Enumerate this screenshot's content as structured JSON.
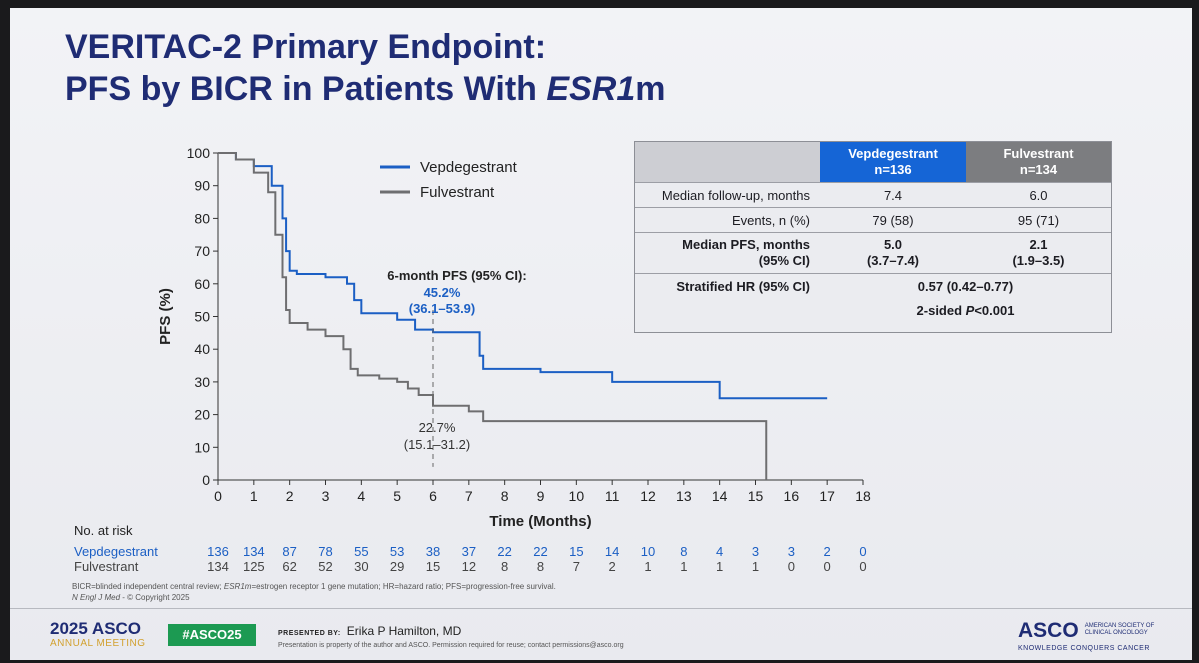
{
  "title": {
    "line1": "VERITAC-2 Primary Endpoint:",
    "line2_prefix": "PFS by BICR in Patients With ",
    "line2_italic": "ESR1",
    "line2_suffix": "m"
  },
  "chart_data": {
    "type": "line",
    "xlabel": "Time (Months)",
    "ylabel": "PFS (%)",
    "xlim": [
      0,
      18
    ],
    "ylim": [
      0,
      100
    ],
    "xticks": [
      0,
      1,
      2,
      3,
      4,
      5,
      6,
      7,
      8,
      9,
      10,
      11,
      12,
      13,
      14,
      15,
      16,
      17,
      18
    ],
    "yticks": [
      0,
      10,
      20,
      30,
      40,
      50,
      60,
      70,
      80,
      90,
      100
    ],
    "colors": {
      "vep": "#1b5fc4",
      "ful": "#6e6e70"
    },
    "legend": [
      "Vepdegestrant",
      "Fulvestrant"
    ],
    "series": [
      {
        "name": "Vepdegestrant",
        "x": [
          0,
          0.5,
          1.0,
          1.5,
          1.8,
          1.9,
          2.0,
          2.2,
          3.0,
          3.6,
          3.8,
          4.0,
          5.0,
          5.5,
          6.0,
          7.0,
          7.3,
          7.4,
          8.5,
          9.0,
          10.0,
          11.0,
          12.0,
          13.8,
          14.0,
          15.0,
          17.0
        ],
        "y": [
          100,
          98,
          96,
          90,
          80,
          70,
          64,
          63,
          62,
          60,
          55,
          51,
          49,
          46,
          45.2,
          45.2,
          38,
          34,
          34,
          33,
          33,
          30,
          30,
          30,
          25,
          25,
          25
        ]
      },
      {
        "name": "Fulvestrant",
        "x": [
          0,
          0.5,
          1.0,
          1.4,
          1.6,
          1.8,
          1.9,
          2.0,
          2.5,
          3.0,
          3.5,
          3.7,
          3.9,
          4.5,
          5.0,
          5.3,
          5.6,
          6.0,
          7.0,
          7.4,
          9.0,
          11.0,
          12.0,
          15.0,
          15.3,
          15.3
        ],
        "y": [
          100,
          98,
          94,
          88,
          75,
          62,
          52,
          48,
          46,
          44,
          40,
          34,
          32,
          31,
          30,
          28,
          26,
          22.7,
          21,
          18,
          18,
          18,
          18,
          18,
          18,
          0
        ]
      }
    ],
    "annotation": {
      "heading": "6-month PFS (95% CI):",
      "vep_value": "45.2%",
      "vep_ci": "(36.1–53.9)",
      "ful_value": "22.7%",
      "ful_ci": "(15.1–31.2)",
      "x": 6
    }
  },
  "table": {
    "col_vep": [
      "Vepdegestrant",
      "n=136"
    ],
    "col_ful": [
      "Fulvestrant",
      "n=134"
    ],
    "rows": [
      {
        "label": "Median follow-up, months",
        "vep": "7.4",
        "ful": "6.0"
      },
      {
        "label": "Events, n (%)",
        "vep": "79 (58)",
        "ful": "95 (71)"
      }
    ],
    "median_pfs": {
      "label1": "Median PFS, months",
      "label2": "(95% CI)",
      "vep1": "5.0",
      "vep2": "(3.7–7.4)",
      "ful1": "2.1",
      "ful2": "(1.9–3.5)"
    },
    "hr": {
      "label": "Stratified HR (95% CI)",
      "value": "0.57 (0.42–0.77)",
      "p_prefix": "2-sided ",
      "p_italic": "P",
      "p_suffix": "<0.001"
    }
  },
  "at_risk": {
    "heading": "No. at risk",
    "vep_label": "Vepdegestrant",
    "ful_label": "Fulvestrant",
    "vep": [
      "136",
      "134",
      "87",
      "78",
      "55",
      "53",
      "38",
      "37",
      "22",
      "22",
      "15",
      "14",
      "10",
      "8",
      "4",
      "3",
      "3",
      "2",
      "0"
    ],
    "ful": [
      "134",
      "125",
      "62",
      "52",
      "30",
      "29",
      "15",
      "12",
      "8",
      "8",
      "7",
      "2",
      "1",
      "1",
      "1",
      "1",
      "0",
      "0",
      "0"
    ]
  },
  "footnote": {
    "line1_a": "BICR=blinded independent central review; ",
    "line1_b": "ESR1m",
    "line1_c": "=estrogen receptor 1 gene mutation; HR=hazard ratio; PFS=progression-free survival.",
    "line2_a": "N Engl J Med",
    "line2_b": " - © Copyright 2025"
  },
  "footer": {
    "meeting_year": "2025 ASCO",
    "meeting_name": "ANNUAL MEETING",
    "hashtag": "#ASCO25",
    "presented_by_label": "PRESENTED BY:",
    "presenter": "Erika P Hamilton, MD",
    "disclaimer": "Presentation is property of the author and ASCO. Permission required for reuse; contact permissions@asco.org",
    "asco_brand": "ASCO",
    "society_line1": "AMERICAN SOCIETY OF",
    "society_line2": "CLINICAL ONCOLOGY",
    "tagline": "KNOWLEDGE CONQUERS CANCER"
  }
}
